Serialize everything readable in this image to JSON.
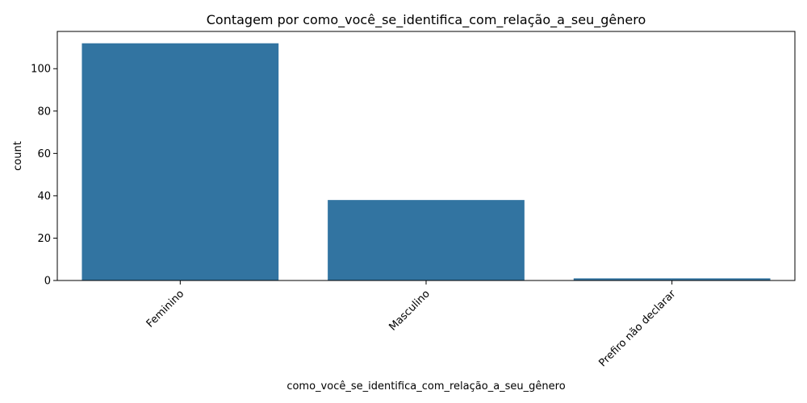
{
  "chart_data": {
    "type": "bar",
    "title": "Contagem por como_você_se_identifica_com_relação_a_seu_gênero",
    "xlabel": "como_você_se_identifica_com_relação_a_seu_gênero",
    "ylabel": "count",
    "categories": [
      "Feminino",
      "Masculino",
      "Prefiro não declarar"
    ],
    "values": [
      112,
      38,
      1
    ],
    "ylim": [
      0,
      117.6
    ],
    "yticks": [
      0,
      20,
      40,
      60,
      80,
      100
    ],
    "bar_color": "#3274a1",
    "grid": false,
    "legend": "none"
  }
}
